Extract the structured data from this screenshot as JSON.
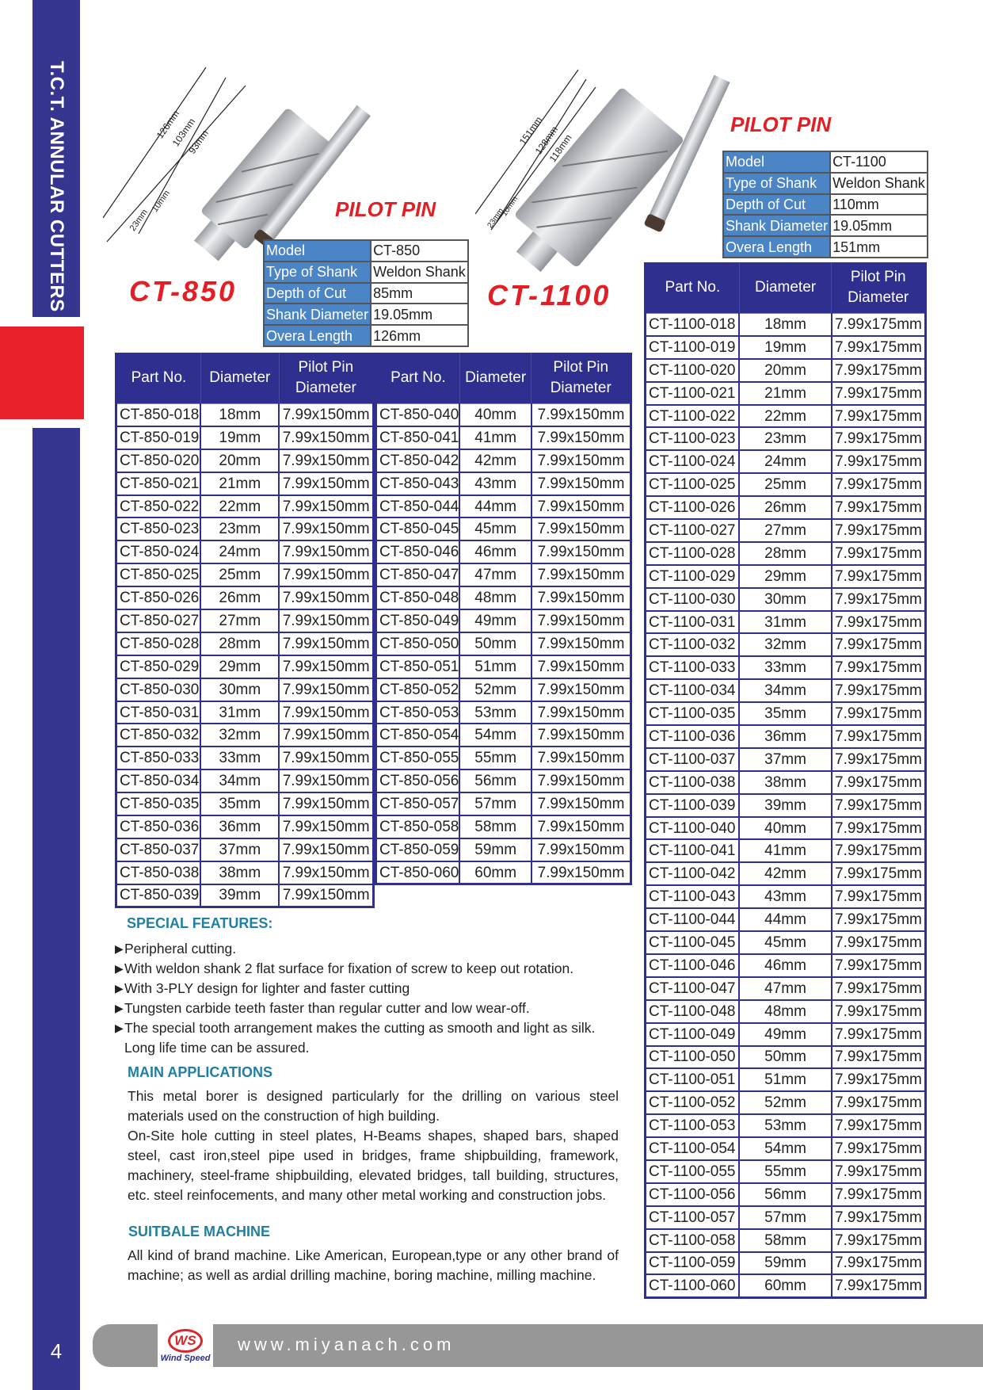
{
  "sidebar": {
    "title": "T.C.T. ANNULAR CUTTERS",
    "page_number": "4"
  },
  "colors": {
    "brand_blue": "#36358f",
    "accent_red": "#e31e24",
    "spec_blue": "#4b85c5",
    "heading_teal": "#1f7fa5",
    "footer_gray": "#979797"
  },
  "ct850": {
    "model": "CT-850",
    "pilot_pin": "PILOT PIN",
    "dims": [
      "126mm",
      "103mm",
      "93mm",
      "23mm",
      "10mm"
    ],
    "specs": [
      [
        "Model",
        "CT-850"
      ],
      [
        "Type of Shank",
        "Weldon Shank"
      ],
      [
        "Depth of Cut",
        "85mm"
      ],
      [
        "Shank Diameter",
        "19.05mm"
      ],
      [
        "Overa Length",
        "126mm"
      ]
    ],
    "headers": [
      "Part No.",
      "Diameter",
      "Pilot Pin Diameter",
      "Part No.",
      "Diameter",
      "Pilot Pin Diameter"
    ],
    "rows_left": [
      [
        "CT-850-018",
        "18mm",
        "7.99x150mm"
      ],
      [
        "CT-850-019",
        "19mm",
        "7.99x150mm"
      ],
      [
        "CT-850-020",
        "20mm",
        "7.99x150mm"
      ],
      [
        "CT-850-021",
        "21mm",
        "7.99x150mm"
      ],
      [
        "CT-850-022",
        "22mm",
        "7.99x150mm"
      ],
      [
        "CT-850-023",
        "23mm",
        "7.99x150mm"
      ],
      [
        "CT-850-024",
        "24mm",
        "7.99x150mm"
      ],
      [
        "CT-850-025",
        "25mm",
        "7.99x150mm"
      ],
      [
        "CT-850-026",
        "26mm",
        "7.99x150mm"
      ],
      [
        "CT-850-027",
        "27mm",
        "7.99x150mm"
      ],
      [
        "CT-850-028",
        "28mm",
        "7.99x150mm"
      ],
      [
        "CT-850-029",
        "29mm",
        "7.99x150mm"
      ],
      [
        "CT-850-030",
        "30mm",
        "7.99x150mm"
      ],
      [
        "CT-850-031",
        "31mm",
        "7.99x150mm"
      ],
      [
        "CT-850-032",
        "32mm",
        "7.99x150mm"
      ],
      [
        "CT-850-033",
        "33mm",
        "7.99x150mm"
      ],
      [
        "CT-850-034",
        "34mm",
        "7.99x150mm"
      ],
      [
        "CT-850-035",
        "35mm",
        "7.99x150mm"
      ],
      [
        "CT-850-036",
        "36mm",
        "7.99x150mm"
      ],
      [
        "CT-850-037",
        "37mm",
        "7.99x150mm"
      ],
      [
        "CT-850-038",
        "38mm",
        "7.99x150mm"
      ],
      [
        "CT-850-039",
        "39mm",
        "7.99x150mm"
      ]
    ],
    "rows_right": [
      [
        "CT-850-040",
        "40mm",
        "7.99x150mm"
      ],
      [
        "CT-850-041",
        "41mm",
        "7.99x150mm"
      ],
      [
        "CT-850-042",
        "42mm",
        "7.99x150mm"
      ],
      [
        "CT-850-043",
        "43mm",
        "7.99x150mm"
      ],
      [
        "CT-850-044",
        "44mm",
        "7.99x150mm"
      ],
      [
        "CT-850-045",
        "45mm",
        "7.99x150mm"
      ],
      [
        "CT-850-046",
        "46mm",
        "7.99x150mm"
      ],
      [
        "CT-850-047",
        "47mm",
        "7.99x150mm"
      ],
      [
        "CT-850-048",
        "48mm",
        "7.99x150mm"
      ],
      [
        "CT-850-049",
        "49mm",
        "7.99x150mm"
      ],
      [
        "CT-850-050",
        "50mm",
        "7.99x150mm"
      ],
      [
        "CT-850-051",
        "51mm",
        "7.99x150mm"
      ],
      [
        "CT-850-052",
        "52mm",
        "7.99x150mm"
      ],
      [
        "CT-850-053",
        "53mm",
        "7.99x150mm"
      ],
      [
        "CT-850-054",
        "54mm",
        "7.99x150mm"
      ],
      [
        "CT-850-055",
        "55mm",
        "7.99x150mm"
      ],
      [
        "CT-850-056",
        "56mm",
        "7.99x150mm"
      ],
      [
        "CT-850-057",
        "57mm",
        "7.99x150mm"
      ],
      [
        "CT-850-058",
        "58mm",
        "7.99x150mm"
      ],
      [
        "CT-850-059",
        "59mm",
        "7.99x150mm"
      ],
      [
        "CT-850-060",
        "60mm",
        "7.99x150mm"
      ]
    ]
  },
  "ct1100": {
    "model": "CT-1100",
    "pilot_pin": "PILOT PIN",
    "dims": [
      "151mm",
      "128mm",
      "118mm",
      "23mm",
      "10mm"
    ],
    "specs": [
      [
        "Model",
        "CT-1100"
      ],
      [
        "Type of Shank",
        "Weldon Shank"
      ],
      [
        "Depth of Cut",
        "110mm"
      ],
      [
        "Shank Diameter",
        "19.05mm"
      ],
      [
        "Overa Length",
        "151mm"
      ]
    ],
    "headers": [
      "Part No.",
      "Diameter",
      "Pilot Pin Diameter"
    ],
    "rows": [
      [
        "CT-1100-018",
        "18mm",
        "7.99x175mm"
      ],
      [
        "CT-1100-019",
        "19mm",
        "7.99x175mm"
      ],
      [
        "CT-1100-020",
        "20mm",
        "7.99x175mm"
      ],
      [
        "CT-1100-021",
        "21mm",
        "7.99x175mm"
      ],
      [
        "CT-1100-022",
        "22mm",
        "7.99x175mm"
      ],
      [
        "CT-1100-023",
        "23mm",
        "7.99x175mm"
      ],
      [
        "CT-1100-024",
        "24mm",
        "7.99x175mm"
      ],
      [
        "CT-1100-025",
        "25mm",
        "7.99x175mm"
      ],
      [
        "CT-1100-026",
        "26mm",
        "7.99x175mm"
      ],
      [
        "CT-1100-027",
        "27mm",
        "7.99x175mm"
      ],
      [
        "CT-1100-028",
        "28mm",
        "7.99x175mm"
      ],
      [
        "CT-1100-029",
        "29mm",
        "7.99x175mm"
      ],
      [
        "CT-1100-030",
        "30mm",
        "7.99x175mm"
      ],
      [
        "CT-1100-031",
        "31mm",
        "7.99x175mm"
      ],
      [
        "CT-1100-032",
        "32mm",
        "7.99x175mm"
      ],
      [
        "CT-1100-033",
        "33mm",
        "7.99x175mm"
      ],
      [
        "CT-1100-034",
        "34mm",
        "7.99x175mm"
      ],
      [
        "CT-1100-035",
        "35mm",
        "7.99x175mm"
      ],
      [
        "CT-1100-036",
        "36mm",
        "7.99x175mm"
      ],
      [
        "CT-1100-037",
        "37mm",
        "7.99x175mm"
      ],
      [
        "CT-1100-038",
        "38mm",
        "7.99x175mm"
      ],
      [
        "CT-1100-039",
        "39mm",
        "7.99x175mm"
      ],
      [
        "CT-1100-040",
        "40mm",
        "7.99x175mm"
      ],
      [
        "CT-1100-041",
        "41mm",
        "7.99x175mm"
      ],
      [
        "CT-1100-042",
        "42mm",
        "7.99x175mm"
      ],
      [
        "CT-1100-043",
        "43mm",
        "7.99x175mm"
      ],
      [
        "CT-1100-044",
        "44mm",
        "7.99x175mm"
      ],
      [
        "CT-1100-045",
        "45mm",
        "7.99x175mm"
      ],
      [
        "CT-1100-046",
        "46mm",
        "7.99x175mm"
      ],
      [
        "CT-1100-047",
        "47mm",
        "7.99x175mm"
      ],
      [
        "CT-1100-048",
        "48mm",
        "7.99x175mm"
      ],
      [
        "CT-1100-049",
        "49mm",
        "7.99x175mm"
      ],
      [
        "CT-1100-050",
        "50mm",
        "7.99x175mm"
      ],
      [
        "CT-1100-051",
        "51mm",
        "7.99x175mm"
      ],
      [
        "CT-1100-052",
        "52mm",
        "7.99x175mm"
      ],
      [
        "CT-1100-053",
        "53mm",
        "7.99x175mm"
      ],
      [
        "CT-1100-054",
        "54mm",
        "7.99x175mm"
      ],
      [
        "CT-1100-055",
        "55mm",
        "7.99x175mm"
      ],
      [
        "CT-1100-056",
        "56mm",
        "7.99x175mm"
      ],
      [
        "CT-1100-057",
        "57mm",
        "7.99x175mm"
      ],
      [
        "CT-1100-058",
        "58mm",
        "7.99x175mm"
      ],
      [
        "CT-1100-059",
        "59mm",
        "7.99x175mm"
      ],
      [
        "CT-1100-060",
        "60mm",
        "7.99x175mm"
      ]
    ]
  },
  "features": {
    "heading": "SPECIAL FEATURES:",
    "items": [
      "Peripheral cutting.",
      "With weldon shank 2 flat surface for fixation of screw to keep out rotation.",
      "With 3-PLY design for lighter and faster cutting",
      "Tungsten carbide teeth faster than regular cutter and low wear-off.",
      "The special tooth arrangement makes the cutting as smooth and light as silk. Long life time can be assured."
    ]
  },
  "applications": {
    "heading": "MAIN APPLICATIONS",
    "p1": "This metal borer is designed particularly for the drilling on various steel materials used on the construction of high building.",
    "p2": "On-Site hole cutting in steel plates, H-Beams shapes, shaped bars, shaped steel, cast iron,steel pipe used in bridges, frame shipbuilding, framework, machinery, steel-frame shipbuilding, elevated bridges, tall building, structures, etc. steel reinfocements, and many other metal working and construction jobs."
  },
  "machine": {
    "heading": "SUITBALE MACHINE",
    "text": "All kind of brand machine. Like American, European,type or any other brand of machine; as well as ardial drilling machine, boring machine, milling machine."
  },
  "footer": {
    "logo_text": "WS",
    "logo_name": "Wind Speed",
    "url": "www.miyanach.com"
  }
}
